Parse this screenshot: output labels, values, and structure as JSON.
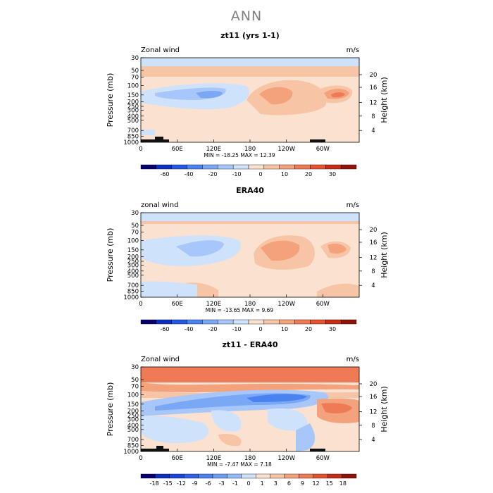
{
  "figure": {
    "title": "ANN"
  },
  "chart_data": [
    {
      "type": "heatmap",
      "title": "zt11 (yrs 1-1)",
      "field_label": "Zonal wind",
      "units": "m/s",
      "ylabel": "Pressure (mb)",
      "y2label": "Height (km)",
      "pressure_ticks": [
        "30",
        "50",
        "70",
        "100",
        "150",
        "200",
        "250",
        "300",
        "400",
        "500",
        "700",
        "850",
        "1000"
      ],
      "height_ticks": [
        "4",
        "8",
        "12",
        "16",
        "20"
      ],
      "lon_ticks": [
        "0",
        "60E",
        "120E",
        "180",
        "120W",
        "60W"
      ],
      "stats": "MIN = -18.25   MAX =  12.39",
      "colorbar_levels": [
        "-60",
        "-40",
        "-20",
        "-10",
        "0",
        "10",
        "20",
        "30"
      ],
      "colorbar_colors": [
        "#08006e",
        "#0c2fbf",
        "#2458e0",
        "#4a82f0",
        "#7aa8f5",
        "#a7c7fa",
        "#cfe2fb",
        "#fbe2d0",
        "#f8c4a6",
        "#f4a27c",
        "#ee7b55",
        "#e2532e",
        "#c52e16",
        "#8f1308"
      ]
    },
    {
      "type": "heatmap",
      "title": "ERA40",
      "field_label": "zonal wind",
      "units": "m/s",
      "ylabel": "Pressure (mb)",
      "y2label": "Height (km)",
      "pressure_ticks": [
        "30",
        "50",
        "70",
        "100",
        "150",
        "200",
        "250",
        "300",
        "400",
        "500",
        "700",
        "850",
        "1000"
      ],
      "height_ticks": [
        "4",
        "8",
        "12",
        "16",
        "20"
      ],
      "lon_ticks": [
        "0",
        "60E",
        "120E",
        "180",
        "120W",
        "60W"
      ],
      "stats": "MIN = -13.65   MAX =   9.69",
      "colorbar_levels": [
        "-60",
        "-40",
        "-20",
        "-10",
        "0",
        "10",
        "20",
        "30"
      ],
      "colorbar_colors": [
        "#08006e",
        "#0c2fbf",
        "#2458e0",
        "#4a82f0",
        "#7aa8f5",
        "#a7c7fa",
        "#cfe2fb",
        "#fbe2d0",
        "#f8c4a6",
        "#f4a27c",
        "#ee7b55",
        "#e2532e",
        "#c52e16",
        "#8f1308"
      ]
    },
    {
      "type": "heatmap",
      "title": "zt11 - ERA40",
      "field_label": "Zonal wind",
      "units": "m/s",
      "ylabel": "Pressure (mb)",
      "y2label": "Height (km)",
      "pressure_ticks": [
        "30",
        "50",
        "70",
        "100",
        "150",
        "200",
        "250",
        "300",
        "400",
        "500",
        "700",
        "850",
        "1000"
      ],
      "height_ticks": [
        "4",
        "8",
        "12",
        "16",
        "20"
      ],
      "lon_ticks": [
        "0",
        "60E",
        "120E",
        "180",
        "120W",
        "60W"
      ],
      "stats": "MIN = -7.47   MAX =  7.18",
      "colorbar_levels": [
        "-18",
        "-15",
        "-12",
        "-9",
        "-6",
        "-3",
        "-1",
        "0",
        "1",
        "3",
        "6",
        "9",
        "12",
        "15",
        "18"
      ],
      "colorbar_colors": [
        "#08006e",
        "#0c2fbf",
        "#1a45d8",
        "#2e62e8",
        "#4a82f0",
        "#6c9df4",
        "#93bbf8",
        "#cfe2fb",
        "#fbe2d0",
        "#f8c4a6",
        "#f4a27c",
        "#ee7b55",
        "#e2532e",
        "#c52e16",
        "#8f1308"
      ]
    }
  ]
}
